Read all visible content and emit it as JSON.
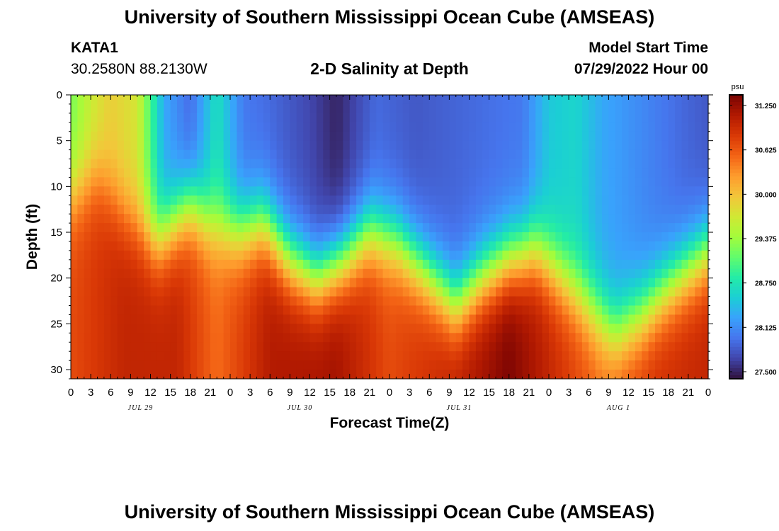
{
  "header": {
    "title": "University of Southern Mississippi Ocean Cube (AMSEAS)",
    "station": "KATA1",
    "coords": "30.2580N  88.2130W",
    "subtitle": "2-D Salinity at Depth",
    "model_label": "Model Start Time",
    "model_date": "07/29/2022 Hour 00"
  },
  "footer": {
    "title": "University of Southern Mississippi Ocean Cube (AMSEAS)"
  },
  "chart_data": {
    "type": "heatmap",
    "xlabel": "Forecast Time(Z)",
    "ylabel": "Depth (ft)",
    "x_range": [
      0,
      96
    ],
    "y_range": [
      0,
      31
    ],
    "x_ticks": [
      "0",
      "3",
      "6",
      "9",
      "12",
      "15",
      "18",
      "21",
      "0",
      "3",
      "6",
      "9",
      "12",
      "15",
      "18",
      "21",
      "0",
      "3",
      "6",
      "9",
      "12",
      "15",
      "18",
      "21",
      "0",
      "3",
      "6",
      "9",
      "12",
      "15",
      "18",
      "21",
      "0"
    ],
    "y_ticks": [
      "0",
      "5",
      "10",
      "15",
      "20",
      "25",
      "30"
    ],
    "day_labels": [
      "JUL 29",
      "JUL 30",
      "JUL 31",
      "AUG 1"
    ],
    "colorbar": {
      "unit": "psu",
      "range": [
        27.4,
        31.4
      ],
      "ticks": [
        "31.250",
        "30.625",
        "30.000",
        "29.375",
        "28.750",
        "28.125",
        "27.500"
      ]
    },
    "colormap": [
      "#30123b",
      "#4145ab",
      "#4675ed",
      "#39a2fc",
      "#1bcfd4",
      "#24eca6",
      "#61fc6c",
      "#a4fc3b",
      "#d1e834",
      "#f3c63a",
      "#fe9b2d",
      "#f36315",
      "#d93806",
      "#b11901",
      "#7a0403"
    ],
    "halocline_depth_ft": [
      {
        "hour": 0,
        "depth": 11
      },
      {
        "hour": 4,
        "depth": 9
      },
      {
        "hour": 8,
        "depth": 13
      },
      {
        "hour": 13,
        "depth": 16
      },
      {
        "hour": 18,
        "depth": 12
      },
      {
        "hour": 21,
        "depth": 14
      },
      {
        "hour": 25,
        "depth": 15
      },
      {
        "hour": 29,
        "depth": 14
      },
      {
        "hour": 33,
        "depth": 18
      },
      {
        "hour": 37,
        "depth": 20
      },
      {
        "hour": 41,
        "depth": 18
      },
      {
        "hour": 45,
        "depth": 15
      },
      {
        "hour": 49,
        "depth": 16
      },
      {
        "hour": 53,
        "depth": 19
      },
      {
        "hour": 58,
        "depth": 23
      },
      {
        "hour": 62,
        "depth": 20
      },
      {
        "hour": 66,
        "depth": 18
      },
      {
        "hour": 70,
        "depth": 17
      },
      {
        "hour": 74,
        "depth": 20
      },
      {
        "hour": 78,
        "depth": 23
      },
      {
        "hour": 82,
        "depth": 26
      },
      {
        "hour": 86,
        "depth": 24
      },
      {
        "hour": 90,
        "depth": 21
      },
      {
        "hour": 96,
        "depth": 17
      }
    ],
    "surface_salinity_psu": [
      {
        "hour": 0,
        "value": 29.2
      },
      {
        "hour": 3,
        "value": 29.6
      },
      {
        "hour": 6,
        "value": 29.9
      },
      {
        "hour": 10,
        "value": 29.7
      },
      {
        "hour": 14,
        "value": 28.3
      },
      {
        "hour": 18,
        "value": 27.9
      },
      {
        "hour": 22,
        "value": 28.7
      },
      {
        "hour": 26,
        "value": 28.0
      },
      {
        "hour": 30,
        "value": 27.9
      },
      {
        "hour": 36,
        "value": 27.7
      },
      {
        "hour": 40,
        "value": 27.5
      },
      {
        "hour": 46,
        "value": 27.9
      },
      {
        "hour": 52,
        "value": 27.8
      },
      {
        "hour": 60,
        "value": 27.9
      },
      {
        "hour": 68,
        "value": 28.0
      },
      {
        "hour": 72,
        "value": 28.5
      },
      {
        "hour": 76,
        "value": 28.6
      },
      {
        "hour": 80,
        "value": 28.3
      },
      {
        "hour": 86,
        "value": 28.1
      },
      {
        "hour": 92,
        "value": 27.9
      },
      {
        "hour": 96,
        "value": 27.8
      }
    ],
    "bottom_salinity_psu": [
      {
        "hour": 0,
        "value": 30.7
      },
      {
        "hour": 8,
        "value": 31.0
      },
      {
        "hour": 16,
        "value": 31.0
      },
      {
        "hour": 22,
        "value": 30.5
      },
      {
        "hour": 30,
        "value": 31.1
      },
      {
        "hour": 40,
        "value": 31.2
      },
      {
        "hour": 48,
        "value": 30.7
      },
      {
        "hour": 54,
        "value": 30.9
      },
      {
        "hour": 62,
        "value": 31.2
      },
      {
        "hour": 66,
        "value": 31.4
      },
      {
        "hour": 72,
        "value": 31.0
      },
      {
        "hour": 80,
        "value": 30.5
      },
      {
        "hour": 88,
        "value": 30.9
      },
      {
        "hour": 96,
        "value": 31.0
      }
    ]
  }
}
